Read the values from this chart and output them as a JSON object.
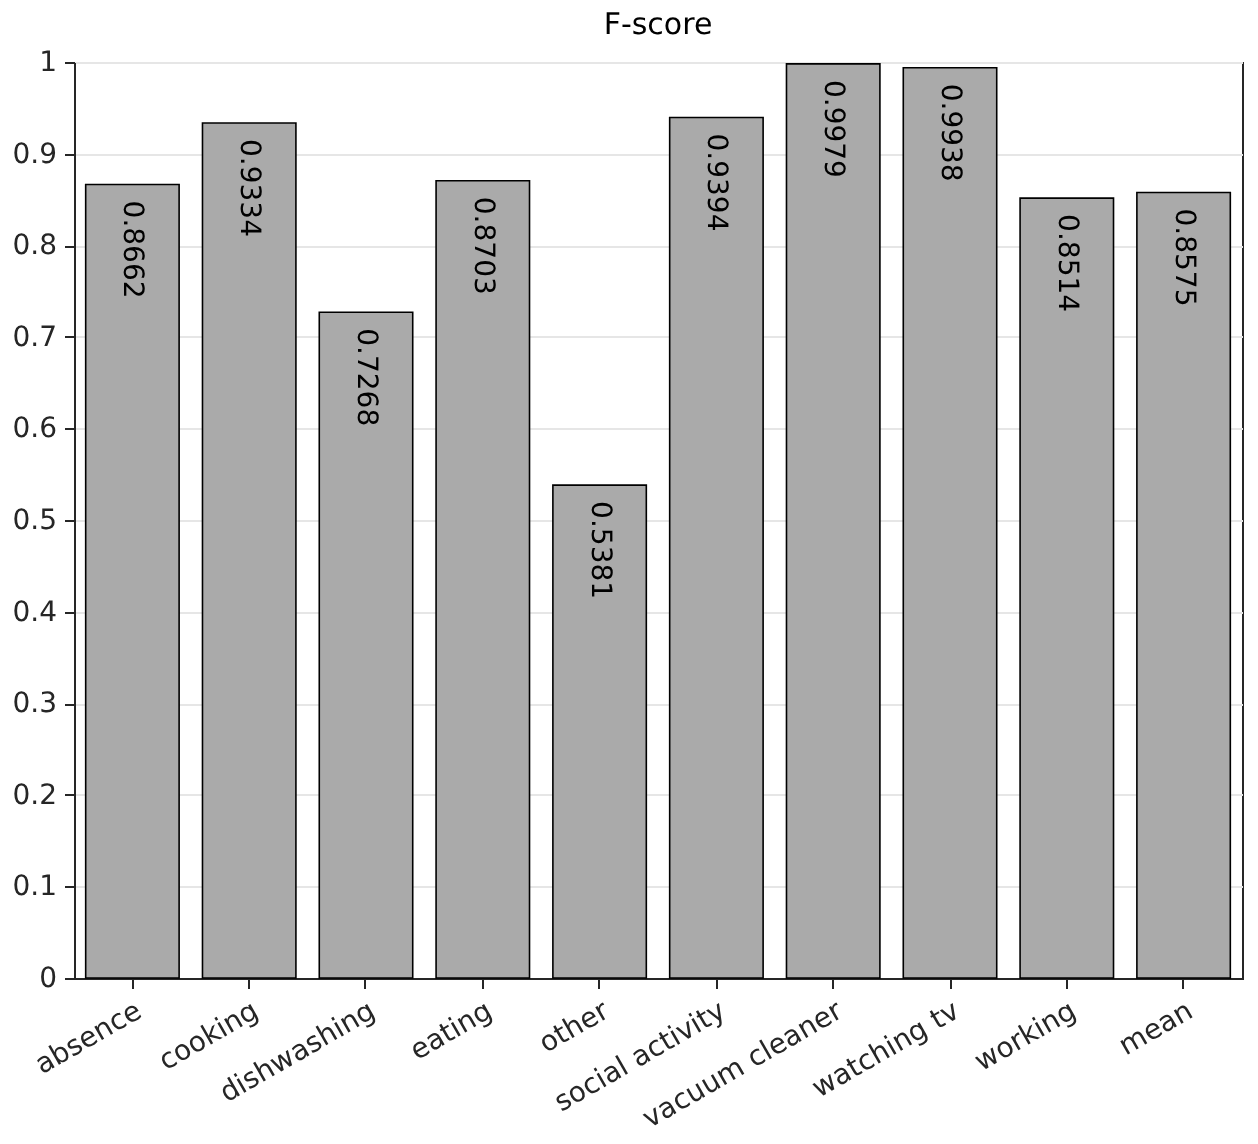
{
  "chart_data": {
    "type": "bar",
    "title": "F-score",
    "categories": [
      "absence",
      "cooking",
      "dishwashing",
      "eating",
      "other",
      "social activity",
      "vacuum cleaner",
      "watching tv",
      "working",
      "mean"
    ],
    "values": [
      0.8662,
      0.9334,
      0.7268,
      0.8703,
      0.5381,
      0.9394,
      0.9979,
      0.9938,
      0.8514,
      0.8575
    ],
    "color": "#aaaaaa",
    "ylim": [
      0,
      1
    ],
    "yticks": [
      0,
      0.1,
      0.2,
      0.3,
      0.4,
      0.5,
      0.6,
      0.7,
      0.8,
      0.9,
      1
    ],
    "grid": "y",
    "data_labels": true
  }
}
